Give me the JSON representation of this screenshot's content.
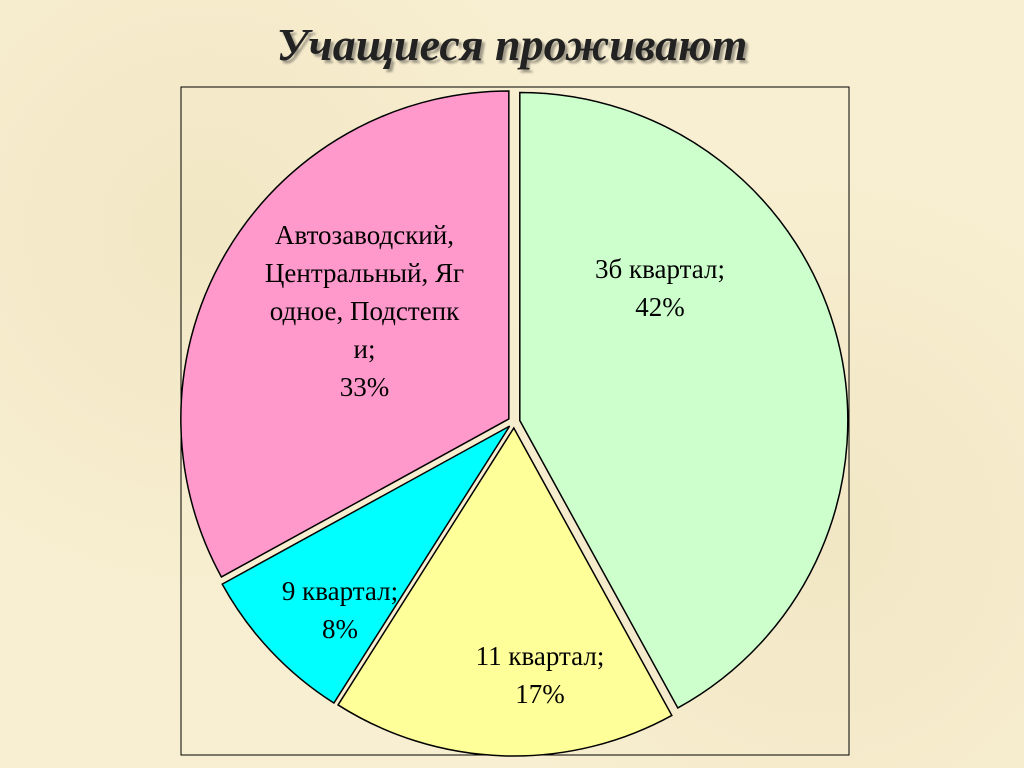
{
  "chart_data": {
    "type": "pie",
    "title": "Учащиеся проживают",
    "categories": [
      "3б квартал;",
      "11 квартал;",
      "9 квартал;",
      "Автозаводский, Центральный, Ягодное, Подстепки;"
    ],
    "values": [
      42,
      17,
      8,
      33
    ],
    "value_labels": [
      "42%",
      "17%",
      "8%",
      "33%"
    ],
    "colors": [
      "#ccffcc",
      "#ffff99",
      "#00ffff",
      "#ff99cc"
    ]
  }
}
